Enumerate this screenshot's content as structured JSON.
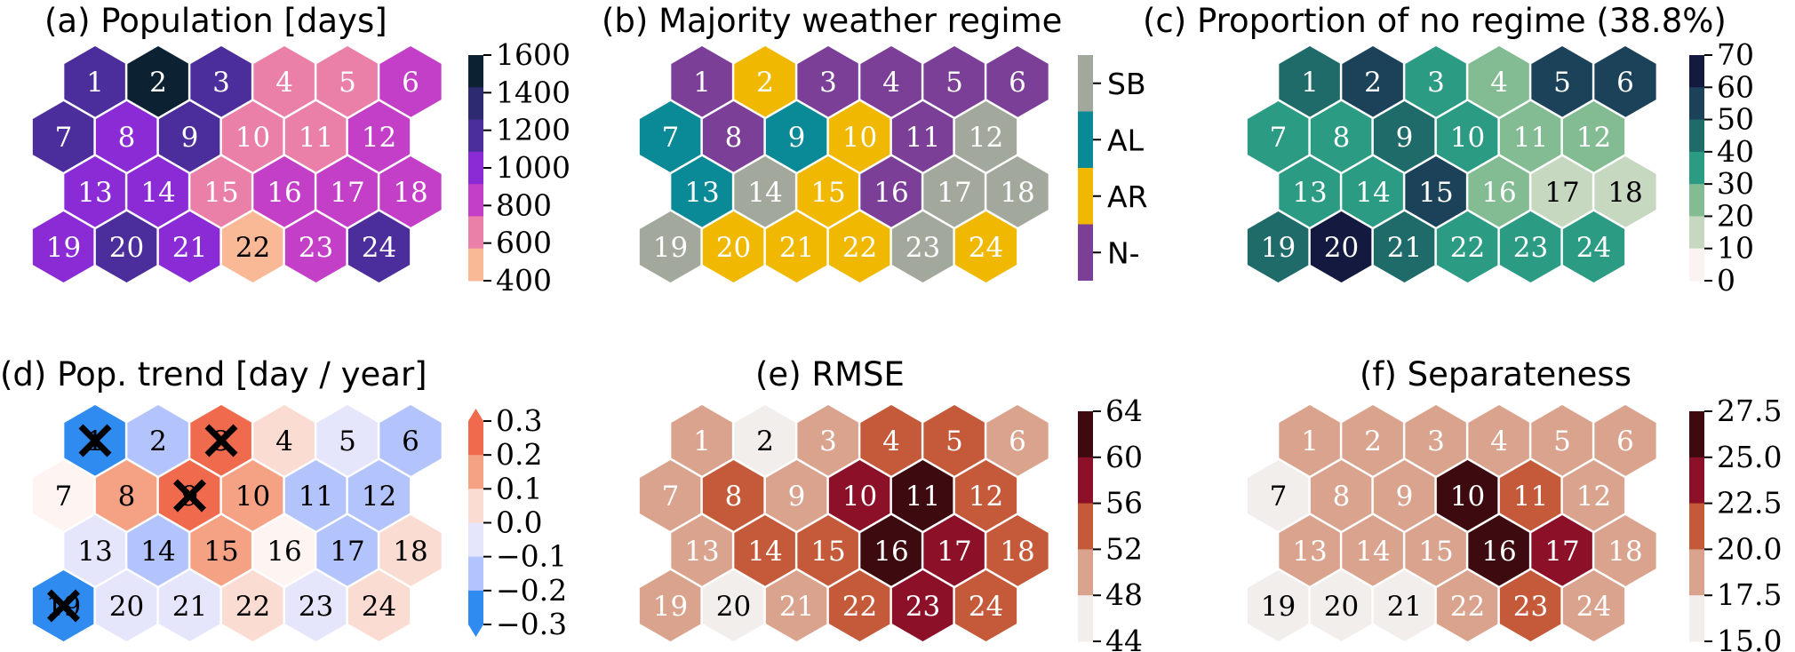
{
  "chart_data": [
    {
      "type": "heatmap",
      "title": "(a) Population [days]",
      "cells": [
        1,
        2,
        3,
        4,
        5,
        6,
        7,
        8,
        9,
        10,
        11,
        12,
        13,
        14,
        15,
        16,
        17,
        18,
        19,
        20,
        21,
        22,
        23,
        24
      ],
      "colorbar": {
        "ticks": [
          "1600",
          "1400",
          "1200",
          "1000",
          "800",
          "600",
          "400"
        ],
        "colors": [
          "#0c2233",
          "#2d2a72",
          "#4b2d9b",
          "#8a2bd6",
          "#c43fc8",
          "#ea7fa8",
          "#f9b896"
        ]
      },
      "cell_colors": [
        "#4b2d9b",
        "#0c2233",
        "#4b2d9b",
        "#ea7fa8",
        "#ea7fa8",
        "#c43fc8",
        "#4b2d9b",
        "#8a2bd6",
        "#4b2d9b",
        "#ea7fa8",
        "#ea7fa8",
        "#c43fc8",
        "#8a2bd6",
        "#8a2bd6",
        "#ea7fa8",
        "#c43fc8",
        "#c43fc8",
        "#c43fc8",
        "#8a2bd6",
        "#4b2d9b",
        "#8a2bd6",
        "#f9b896",
        "#c43fc8",
        "#4b2d9b"
      ],
      "text_colors": [
        "#fff",
        "#fff",
        "#fff",
        "#fff",
        "#fff",
        "#fff",
        "#fff",
        "#fff",
        "#fff",
        "#fff",
        "#fff",
        "#fff",
        "#fff",
        "#fff",
        "#fff",
        "#fff",
        "#fff",
        "#fff",
        "#fff",
        "#fff",
        "#fff",
        "#000",
        "#fff",
        "#fff"
      ]
    },
    {
      "type": "heatmap",
      "title": "(b) Majority weather regime",
      "cells": [
        1,
        2,
        3,
        4,
        5,
        6,
        7,
        8,
        9,
        10,
        11,
        12,
        13,
        14,
        15,
        16,
        17,
        18,
        19,
        20,
        21,
        22,
        23,
        24
      ],
      "legend": [
        {
          "label": "SB",
          "color": "#a2a89c"
        },
        {
          "label": "AL",
          "color": "#0a8a96"
        },
        {
          "label": "AR",
          "color": "#f0b800"
        },
        {
          "label": "N-",
          "color": "#7b3f98"
        }
      ],
      "regimes": [
        "N-",
        "AR",
        "N-",
        "N-",
        "N-",
        "N-",
        "AL",
        "N-",
        "AL",
        "AR",
        "N-",
        "SB",
        "AL",
        "SB",
        "AR",
        "N-",
        "SB",
        "SB",
        "SB",
        "AR",
        "AR",
        "AR",
        "SB",
        "AR"
      ],
      "cell_colors": [
        "#7b3f98",
        "#f0b800",
        "#7b3f98",
        "#7b3f98",
        "#7b3f98",
        "#7b3f98",
        "#0a8a96",
        "#7b3f98",
        "#0a8a96",
        "#f0b800",
        "#7b3f98",
        "#a2a89c",
        "#0a8a96",
        "#a2a89c",
        "#f0b800",
        "#7b3f98",
        "#a2a89c",
        "#a2a89c",
        "#a2a89c",
        "#f0b800",
        "#f0b800",
        "#f0b800",
        "#a2a89c",
        "#f0b800"
      ],
      "text_colors": [
        "#fff",
        "#fff",
        "#fff",
        "#fff",
        "#fff",
        "#fff",
        "#fff",
        "#fff",
        "#fff",
        "#fff",
        "#fff",
        "#fff",
        "#fff",
        "#fff",
        "#fff",
        "#fff",
        "#fff",
        "#fff",
        "#fff",
        "#fff",
        "#fff",
        "#fff",
        "#fff",
        "#fff"
      ]
    },
    {
      "type": "heatmap",
      "title": "(c) Proportion of no regime (38.8%)",
      "cells": [
        1,
        2,
        3,
        4,
        5,
        6,
        7,
        8,
        9,
        10,
        11,
        12,
        13,
        14,
        15,
        16,
        17,
        18,
        19,
        20,
        21,
        22,
        23,
        24
      ],
      "colorbar": {
        "ticks": [
          "70",
          "60",
          "50",
          "40",
          "30",
          "20",
          "10",
          "0"
        ],
        "colors": [
          "#14193f",
          "#1b4258",
          "#1f6b6a",
          "#2b9b84",
          "#83bc92",
          "#c7d8c1",
          "#fbf3f1"
        ]
      },
      "cell_colors": [
        "#1f6b6a",
        "#1b4258",
        "#2b9b84",
        "#83bc92",
        "#1b4258",
        "#1b4258",
        "#2b9b84",
        "#2b9b84",
        "#1f6b6a",
        "#2b9b84",
        "#83bc92",
        "#83bc92",
        "#2b9b84",
        "#2b9b84",
        "#1b4258",
        "#83bc92",
        "#c7d8c1",
        "#c7d8c1",
        "#1f6b6a",
        "#14193f",
        "#1f6b6a",
        "#2b9b84",
        "#2b9b84",
        "#2b9b84"
      ],
      "text_colors": [
        "#fff",
        "#fff",
        "#fff",
        "#fff",
        "#fff",
        "#fff",
        "#fff",
        "#fff",
        "#fff",
        "#fff",
        "#fff",
        "#fff",
        "#fff",
        "#fff",
        "#fff",
        "#fff",
        "#000",
        "#000",
        "#fff",
        "#fff",
        "#fff",
        "#fff",
        "#fff",
        "#fff"
      ]
    },
    {
      "type": "heatmap",
      "title": "(d) Pop. trend [day / year]",
      "cells": [
        1,
        2,
        3,
        4,
        5,
        6,
        7,
        8,
        9,
        10,
        11,
        12,
        13,
        14,
        15,
        16,
        17,
        18,
        19,
        20,
        21,
        22,
        23,
        24
      ],
      "colorbar": {
        "ticks": [
          "0.3",
          "0.2",
          "0.1",
          "0.0",
          "−0.1",
          "−0.2",
          "−0.3"
        ],
        "colors": [
          "#f06a4d",
          "#f5a184",
          "#fbdcd2",
          "#e5e5fb",
          "#b3c4fc",
          "#2f8bf0"
        ],
        "arrow_colors": [
          "#f06a4d",
          "#2f8bf0"
        ]
      },
      "cell_colors": [
        "#2f8bf0",
        "#b3c4fc",
        "#f06a4d",
        "#fbdcd2",
        "#e5e5fb",
        "#b3c4fc",
        "#fef4f2",
        "#f5a184",
        "#f06a4d",
        "#f5a184",
        "#b3c4fc",
        "#b3c4fc",
        "#e5e5fb",
        "#b3c4fc",
        "#f5a184",
        "#fef4f2",
        "#b3c4fc",
        "#fbdcd2",
        "#2f8bf0",
        "#e5e5fb",
        "#e5e5fb",
        "#fbdcd2",
        "#e5e5fb",
        "#fbdcd2"
      ],
      "text_colors": [
        "#000",
        "#000",
        "#000",
        "#000",
        "#000",
        "#000",
        "#000",
        "#000",
        "#000",
        "#000",
        "#000",
        "#000",
        "#000",
        "#000",
        "#000",
        "#000",
        "#000",
        "#000",
        "#000",
        "#000",
        "#000",
        "#000",
        "#000",
        "#000"
      ],
      "marked_cells": [
        1,
        3,
        9,
        19
      ]
    },
    {
      "type": "heatmap",
      "title": "(e) RMSE",
      "cells": [
        1,
        2,
        3,
        4,
        5,
        6,
        7,
        8,
        9,
        10,
        11,
        12,
        13,
        14,
        15,
        16,
        17,
        18,
        19,
        20,
        21,
        22,
        23,
        24
      ],
      "colorbar": {
        "ticks": [
          "64",
          "60",
          "56",
          "52",
          "48",
          "44"
        ],
        "colors": [
          "#3d0a10",
          "#8c1128",
          "#c45a3a",
          "#d9a38e",
          "#f2eeec"
        ]
      },
      "cell_colors": [
        "#d9a38e",
        "#f2eeec",
        "#d9a38e",
        "#c45a3a",
        "#c45a3a",
        "#d9a38e",
        "#d9a38e",
        "#c45a3a",
        "#d9a38e",
        "#8c1128",
        "#3d0a10",
        "#c45a3a",
        "#d9a38e",
        "#c45a3a",
        "#c45a3a",
        "#3d0a10",
        "#8c1128",
        "#c45a3a",
        "#d9a38e",
        "#f2eeec",
        "#d9a38e",
        "#c45a3a",
        "#8c1128",
        "#c45a3a"
      ],
      "text_colors": [
        "#fff",
        "#000",
        "#fff",
        "#fff",
        "#fff",
        "#fff",
        "#fff",
        "#fff",
        "#fff",
        "#fff",
        "#fff",
        "#fff",
        "#fff",
        "#fff",
        "#fff",
        "#fff",
        "#fff",
        "#fff",
        "#fff",
        "#000",
        "#fff",
        "#fff",
        "#fff",
        "#fff"
      ]
    },
    {
      "type": "heatmap",
      "title": "(f) Separateness",
      "cells": [
        1,
        2,
        3,
        4,
        5,
        6,
        7,
        8,
        9,
        10,
        11,
        12,
        13,
        14,
        15,
        16,
        17,
        18,
        19,
        20,
        21,
        22,
        23,
        24
      ],
      "colorbar": {
        "ticks": [
          "27.5",
          "25.0",
          "22.5",
          "20.0",
          "17.5",
          "15.0"
        ],
        "colors": [
          "#3d0a10",
          "#8c1128",
          "#c45a3a",
          "#d9a38e",
          "#f2eeec"
        ]
      },
      "cell_colors": [
        "#d9a38e",
        "#d9a38e",
        "#d9a38e",
        "#d9a38e",
        "#d9a38e",
        "#d9a38e",
        "#f2eeec",
        "#d9a38e",
        "#d9a38e",
        "#3d0a10",
        "#c45a3a",
        "#d9a38e",
        "#d9a38e",
        "#d9a38e",
        "#d9a38e",
        "#3d0a10",
        "#8c1128",
        "#d9a38e",
        "#f2eeec",
        "#f2eeec",
        "#f2eeec",
        "#d9a38e",
        "#c45a3a",
        "#d9a38e"
      ],
      "text_colors": [
        "#fff",
        "#fff",
        "#fff",
        "#fff",
        "#fff",
        "#fff",
        "#000",
        "#fff",
        "#fff",
        "#fff",
        "#fff",
        "#fff",
        "#fff",
        "#fff",
        "#fff",
        "#fff",
        "#fff",
        "#fff",
        "#000",
        "#000",
        "#000",
        "#fff",
        "#fff",
        "#fff"
      ]
    }
  ]
}
